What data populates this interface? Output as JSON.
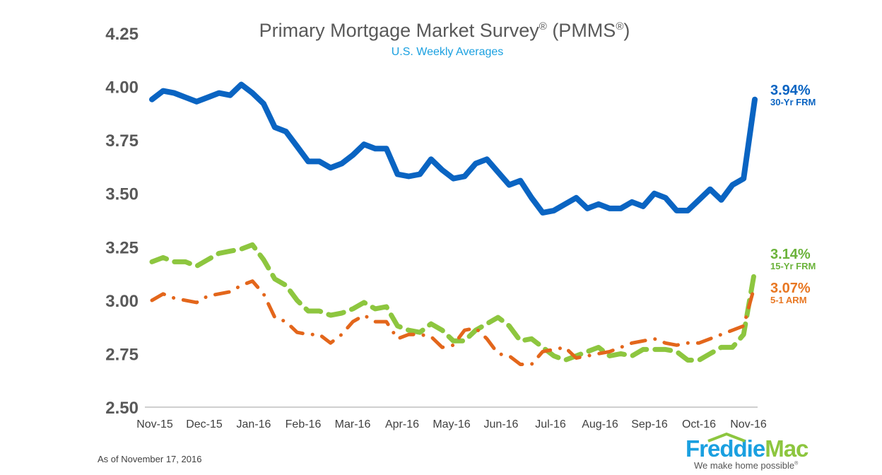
{
  "chart_data": {
    "type": "line",
    "title": "Primary Mortgage Market Survey",
    "title_suffix_1": "(PMMS",
    "title_suffix_2": ")",
    "registered_mark": "®",
    "subtitle": "U.S. Weekly Averages",
    "ylim": [
      2.5,
      4.25
    ],
    "yticks": [
      "4.25",
      "4.00",
      "3.75",
      "3.50",
      "3.25",
      "3.00",
      "2.75",
      "2.50"
    ],
    "xtick_labels": [
      "Nov-15",
      "Dec-15",
      "Jan-16",
      "Feb-16",
      "Mar-16",
      "Apr-16",
      "May-16",
      "Jun-16",
      "Jul-16",
      "Aug-16",
      "Sep-16",
      "Oct-16",
      "Nov-16"
    ],
    "grid": false,
    "series": [
      {
        "name": "30-Yr FRM",
        "end_label": "3.94%",
        "color": "#0a64c2",
        "style": "solid",
        "values": [
          3.94,
          3.98,
          3.97,
          3.95,
          3.93,
          3.95,
          3.97,
          3.96,
          4.01,
          3.97,
          3.92,
          3.81,
          3.79,
          3.72,
          3.65,
          3.65,
          3.62,
          3.64,
          3.68,
          3.73,
          3.71,
          3.71,
          3.59,
          3.58,
          3.59,
          3.66,
          3.61,
          3.57,
          3.58,
          3.64,
          3.66,
          3.6,
          3.54,
          3.56,
          3.48,
          3.41,
          3.42,
          3.45,
          3.48,
          3.43,
          3.45,
          3.43,
          3.43,
          3.46,
          3.44,
          3.5,
          3.48,
          3.42,
          3.42,
          3.47,
          3.52,
          3.47,
          3.54,
          3.57,
          3.94
        ]
      },
      {
        "name": "15-Yr FRM",
        "end_label": "3.14%",
        "color": "#8dc63f",
        "label_color": "#6bb33b",
        "style": "dashed",
        "values": [
          3.18,
          3.2,
          3.18,
          3.18,
          3.16,
          3.19,
          3.22,
          3.23,
          3.24,
          3.26,
          3.19,
          3.1,
          3.07,
          3.0,
          2.95,
          2.95,
          2.93,
          2.94,
          2.96,
          2.99,
          2.96,
          2.97,
          2.88,
          2.86,
          2.85,
          2.89,
          2.86,
          2.81,
          2.81,
          2.86,
          2.89,
          2.92,
          2.88,
          2.81,
          2.82,
          2.78,
          2.74,
          2.72,
          2.74,
          2.76,
          2.78,
          2.74,
          2.75,
          2.74,
          2.77,
          2.77,
          2.77,
          2.76,
          2.72,
          2.72,
          2.75,
          2.78,
          2.78,
          2.84,
          3.14
        ]
      },
      {
        "name": "5-1 ARM",
        "end_label": "3.07%",
        "color": "#e3661b",
        "label_color": "#e87722",
        "style": "dash-dot",
        "values": [
          3.0,
          3.03,
          3.01,
          3.0,
          2.99,
          3.02,
          3.03,
          3.04,
          3.07,
          3.09,
          3.03,
          2.92,
          2.9,
          2.85,
          2.84,
          2.84,
          2.8,
          2.84,
          2.9,
          2.93,
          2.9,
          2.9,
          2.82,
          2.84,
          2.84,
          2.83,
          2.78,
          2.79,
          2.86,
          2.87,
          2.82,
          2.75,
          2.74,
          2.7,
          2.7,
          2.76,
          2.77,
          2.78,
          2.73,
          2.74,
          2.75,
          2.76,
          2.78,
          2.8,
          2.81,
          2.82,
          2.8,
          2.79,
          2.8,
          2.8,
          2.82,
          2.84,
          2.86,
          2.88,
          3.07
        ]
      }
    ]
  },
  "footer": {
    "as_of": "As of November 17, 2016",
    "logo_freddie": "Freddie",
    "logo_mac": "Mac",
    "logo_tagline": "We make home possible",
    "logo_tagline_mark": "®"
  }
}
